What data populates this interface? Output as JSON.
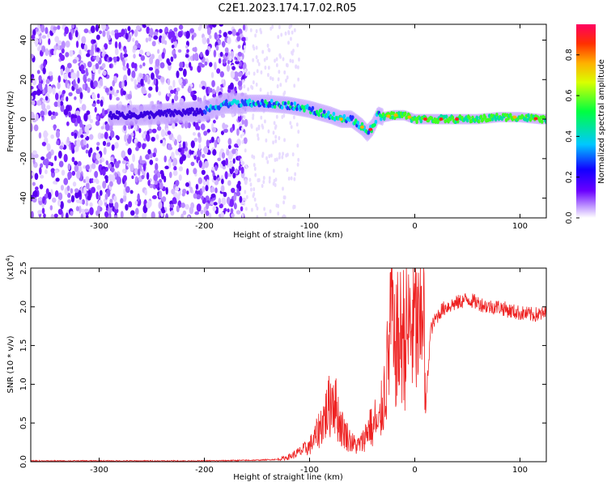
{
  "title": "C2E1.2023.174.17.02.R05",
  "chart_data": [
    {
      "type": "heatmap",
      "xlabel": "Height of straight line (km)",
      "ylabel": "Frequency (Hz)",
      "xlim": [
        -365,
        125
      ],
      "ylim": [
        -50,
        48
      ],
      "xticks": [
        -300,
        -200,
        -100,
        0,
        100
      ],
      "xtick_labels": [
        "-300",
        "-200",
        "-100",
        "0",
        "100"
      ],
      "yticks": [
        -40,
        -20,
        0,
        20,
        40
      ],
      "ytick_labels": [
        "-40",
        "-20",
        "0",
        "20",
        "40"
      ],
      "colorbar": {
        "label": "Normalized spectral amplitude",
        "range": [
          0,
          0.95
        ],
        "ticks": [
          0,
          0.2,
          0.4,
          0.6,
          0.8
        ],
        "tick_labels": [
          "0.0",
          "0.2",
          "0.4",
          "0.6",
          "0.8"
        ],
        "colormap": [
          "#ffffff",
          "#6a00ff",
          "#0000ff",
          "#00e5ff",
          "#00ff00",
          "#ffff00",
          "#ff8000",
          "#ff0050"
        ]
      },
      "ridge_trace": {
        "x": [
          -260,
          -230,
          -200,
          -180,
          -160,
          -140,
          -120,
          -100,
          -80,
          -70,
          -60,
          -50,
          -45,
          -40,
          -35,
          -30,
          -20,
          -10,
          0,
          20,
          40,
          60,
          80,
          100,
          120
        ],
        "y": [
          2,
          3,
          4,
          8,
          8,
          8,
          7,
          5,
          2,
          0,
          0,
          -4,
          -7,
          -4,
          2,
          1,
          2,
          2,
          0,
          0,
          0,
          0,
          1,
          1,
          0
        ]
      },
      "noise_region_x": [
        -365,
        -160
      ]
    },
    {
      "type": "line",
      "xlabel": "Height of straight line (km)",
      "ylabel": "SNR (10 * v/v)",
      "yscale_label": "(x10",
      "yscale_exp": "4",
      "yscale_close": ")",
      "xlim": [
        -365,
        125
      ],
      "ylim": [
        0,
        2.5
      ],
      "xticks": [
        -300,
        -200,
        -100,
        0,
        100
      ],
      "xtick_labels": [
        "-300",
        "-200",
        "-100",
        "0",
        "100"
      ],
      "yticks": [
        0,
        0.5,
        1.0,
        1.5,
        2.0,
        2.5
      ],
      "ytick_labels": [
        "0.0",
        "0.5",
        "1.0",
        "1.5",
        "2.0",
        "2.5"
      ],
      "color": "#ee2222",
      "series": [
        {
          "x": [
            -365,
            -300,
            -200,
            -150,
            -130,
            -120,
            -110,
            -100,
            -95,
            -90,
            -85,
            -80,
            -78,
            -75,
            -70,
            -65,
            -60,
            -55,
            -50,
            -45,
            -42,
            -40,
            -38,
            -35,
            -30,
            -25,
            -22,
            -20,
            -18,
            -15,
            -12,
            -10,
            -5,
            0,
            5,
            8,
            10,
            15,
            20,
            25,
            30,
            40,
            50,
            60,
            70,
            80,
            90,
            100,
            110,
            120,
            125
          ],
          "y": [
            0.01,
            0.01,
            0.01,
            0.02,
            0.03,
            0.06,
            0.12,
            0.2,
            0.3,
            0.45,
            0.6,
            0.75,
            0.9,
            0.7,
            0.45,
            0.35,
            0.25,
            0.2,
            0.25,
            0.4,
            0.5,
            0.35,
            0.55,
            0.4,
            0.8,
            1.3,
            2.25,
            1.2,
            1.6,
            1.5,
            1.7,
            1.6,
            1.7,
            1.8,
            1.55,
            2.5,
            0.6,
            1.7,
            1.85,
            1.95,
            2.0,
            2.05,
            2.1,
            2.05,
            2.0,
            2.0,
            1.95,
            1.92,
            1.9,
            1.9,
            1.92
          ]
        }
      ]
    }
  ]
}
